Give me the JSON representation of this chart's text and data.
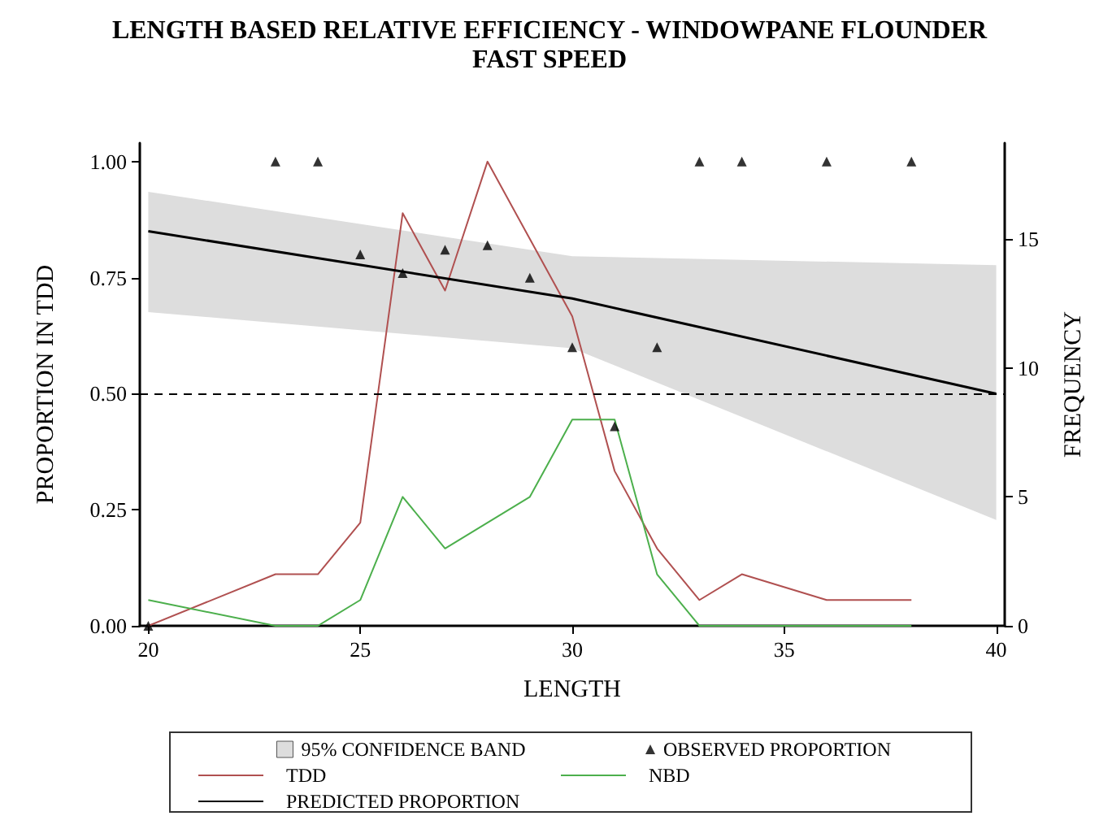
{
  "chart_data": {
    "type": "line",
    "title": "LENGTH BASED RELATIVE EFFICIENCY - WINDOWPANE FLOUNDER",
    "subtitle": "FAST SPEED",
    "xlabel": "LENGTH",
    "ylabel": "PROPORTION IN TDD",
    "y2label": "FREQUENCY",
    "xlim": [
      19.8,
      40.2
    ],
    "xticks": [
      20,
      25,
      30,
      35,
      40
    ],
    "ylim": [
      0,
      1.04
    ],
    "yticks": [
      {
        "value": 0,
        "label": "0.00"
      },
      {
        "value": 0.25,
        "label": "0.25"
      },
      {
        "value": 0.5,
        "label": "0.50"
      },
      {
        "value": 0.75,
        "label": "0.75"
      },
      {
        "value": 1,
        "label": "1.00"
      }
    ],
    "y2lim": [
      0,
      18.72
    ],
    "y2ticks": [
      0,
      5,
      10,
      15
    ],
    "grid": false,
    "legend": "bottom",
    "ref_lines": [
      {
        "axis": "y",
        "value": 0.5,
        "color": "#000000",
        "line_style": "dashed"
      }
    ],
    "series": [
      {
        "name": "95% CONFIDENCE BAND",
        "type": "area",
        "color": "#dddddd",
        "x": [
          20,
          30,
          40
        ],
        "values": [
          null,
          null,
          null
        ],
        "lower": [
          0.676,
          0.598,
          0.228
        ],
        "upper": [
          0.935,
          0.796,
          0.777
        ]
      },
      {
        "name": "OBSERVED PROPORTION",
        "type": "scatter",
        "marker": "triangle",
        "color": "#000000",
        "x": [
          20,
          23,
          24,
          25,
          26,
          27,
          28,
          29,
          30,
          31,
          32,
          33,
          34,
          36,
          38
        ],
        "values": [
          0,
          1,
          1,
          0.8,
          0.76,
          0.81,
          0.82,
          0.75,
          0.6,
          0.43,
          0.6,
          1,
          1,
          1,
          1
        ]
      },
      {
        "name": "TDD",
        "axis": "y2",
        "color": "#b05050",
        "x": [
          20,
          23,
          24,
          25,
          26,
          27,
          28,
          29,
          30,
          31,
          32,
          33,
          34,
          36,
          38
        ],
        "values": [
          0,
          2,
          2,
          4,
          16,
          13,
          18,
          15,
          12,
          6,
          3,
          1,
          2,
          1,
          1
        ]
      },
      {
        "name": "NBD",
        "axis": "y2",
        "color": "#4caf4c",
        "x": [
          20,
          23,
          24,
          25,
          26,
          27,
          28,
          29,
          30,
          31,
          32,
          33,
          34,
          36,
          38
        ],
        "values": [
          1,
          0,
          0,
          1,
          5,
          3,
          4,
          5,
          8,
          8,
          2,
          0,
          0,
          0,
          0
        ]
      },
      {
        "name": "PREDICTED PROPORTION",
        "color": "#000000",
        "x": [
          20,
          30,
          40
        ],
        "values": [
          0.85,
          0.705,
          0.5
        ]
      }
    ]
  }
}
